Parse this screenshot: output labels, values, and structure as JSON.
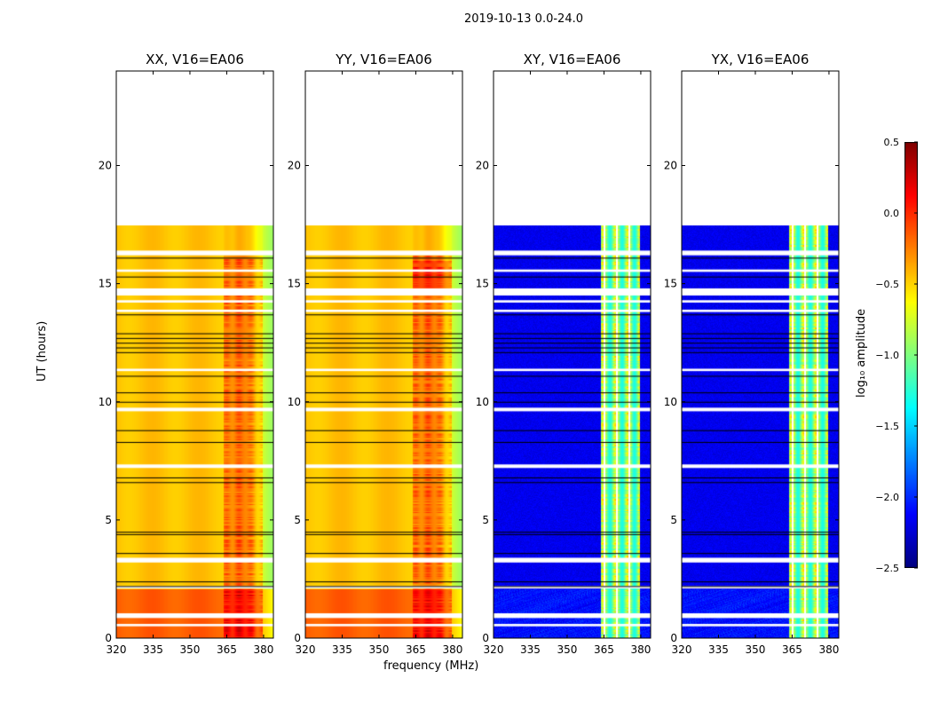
{
  "suptitle": "2019-10-13 0.0-24.0",
  "chart_data": {
    "type": "heatmap",
    "xlabel": "frequency (MHz)",
    "ylabel": "UT (hours)",
    "xlim": [
      320,
      384
    ],
    "ylim": [
      0,
      24
    ],
    "xticks": [
      "320",
      "335",
      "350",
      "365",
      "380"
    ],
    "yticks": [
      "0",
      "5",
      "10",
      "15",
      "20"
    ],
    "panels": [
      {
        "title": "XX, V16=EA06",
        "kind": "parallel"
      },
      {
        "title": "YY, V16=EA06",
        "kind": "parallel"
      },
      {
        "title": "XY, V16=EA06",
        "kind": "cross"
      },
      {
        "title": "YX, V16=EA06",
        "kind": "cross"
      }
    ],
    "data_end_hour": 17.5,
    "flagged_gaps_hours": [
      [
        16.2,
        16.4
      ],
      [
        15.5,
        15.6
      ],
      [
        14.5,
        14.8
      ],
      [
        14.2,
        14.3
      ],
      [
        13.8,
        13.9
      ],
      [
        11.3,
        11.4
      ],
      [
        9.6,
        9.75
      ],
      [
        7.2,
        7.35
      ],
      [
        3.2,
        3.4
      ],
      [
        2.1,
        2.2
      ],
      [
        0.85,
        1.05
      ],
      [
        0.5,
        0.6
      ]
    ],
    "black_lines_hours": [
      16.1,
      15.3,
      13.7,
      12.9,
      12.7,
      12.5,
      12.3,
      12.1,
      11.1,
      10.4,
      10.0,
      8.8,
      8.3,
      6.8,
      6.6,
      4.5,
      4.4,
      3.6,
      2.4,
      2.2
    ],
    "colorbar": {
      "label": "log₁₀ amplitude",
      "range": [
        -2.5,
        0.5
      ],
      "ticks": [
        "0.5",
        "0.0",
        "−0.5",
        "−1.0",
        "−1.5",
        "−2.0",
        "−2.5"
      ],
      "colormap": "jet"
    }
  }
}
